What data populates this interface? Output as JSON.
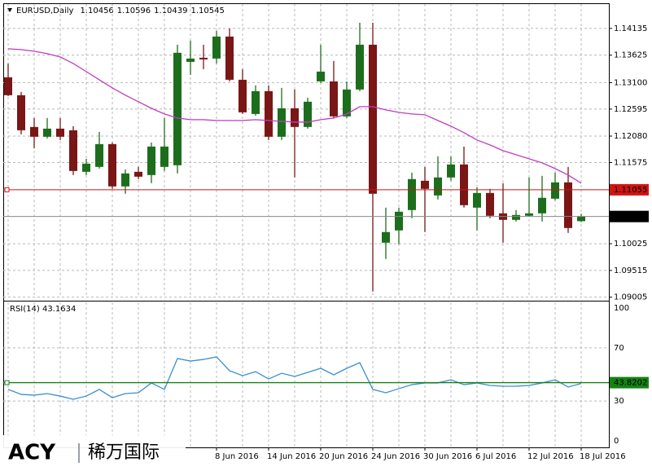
{
  "chart_data": {
    "type": "candlestick",
    "title": "EURUSD,Daily",
    "categories": [
      null,
      null,
      null,
      null,
      null,
      null,
      null,
      null,
      null,
      null,
      null,
      null,
      null,
      null,
      null,
      null,
      "8 Jun 2016",
      null,
      null,
      null,
      "14 Jun 2016",
      null,
      null,
      null,
      "20 Jun 2016",
      null,
      null,
      null,
      "24 Jun 2016",
      null,
      null,
      null,
      "30 Jun 2016",
      null,
      null,
      null,
      "6 Jul 2016",
      null,
      null,
      null,
      "12 Jul 2016",
      null,
      null,
      null,
      "18 Jul 2016"
    ],
    "open": [
      1.13202,
      1.1286,
      1.12254,
      1.12067,
      1.12222,
      1.12191,
      1.11398,
      1.11492,
      1.11927,
      1.11119,
      1.11398,
      1.11336,
      1.11492,
      1.11523,
      1.13497,
      1.13575,
      1.1356,
      1.1398,
      1.13155,
      1.12502,
      1.12938,
      1.12067,
      1.12611,
      1.12254,
      1.13124,
      1.13124,
      1.12456,
      1.12969,
      1.13824,
      1.10045,
      1.10279,
      1.10668,
      1.11227,
      1.10947,
      1.1129,
      1.11538,
      1.10714,
      1.10994,
      1.10605,
      1.10481,
      1.10559,
      1.10605,
      1.10885,
      1.11196,
      1.10456
    ],
    "high": [
      1.13466,
      1.12922,
      1.12425,
      1.12425,
      1.12425,
      1.12269,
      1.11647,
      1.1216,
      1.11958,
      1.11445,
      1.11492,
      1.11958,
      1.12425,
      1.13824,
      1.13902,
      1.13824,
      1.14088,
      1.14135,
      1.13358,
      1.13047,
      1.13047,
      1.13,
      1.12969,
      1.12813,
      1.13824,
      1.13513,
      1.13124,
      1.14244,
      1.14244,
      1.10714,
      1.10714,
      1.11383,
      1.11492,
      1.11694,
      1.11694,
      1.1188,
      1.11103,
      1.11072,
      1.11181,
      1.10668,
      1.1129,
      1.11321,
      1.11383,
      1.11492,
      1.10596
    ],
    "low": [
      1.12844,
      1.12114,
      1.11849,
      1.12036,
      1.12005,
      1.11336,
      1.11336,
      1.1146,
      1.11072,
      1.10979,
      1.11259,
      1.11181,
      1.11414,
      1.11367,
      1.13249,
      1.13358,
      1.13466,
      1.13124,
      1.12502,
      1.12471,
      1.12005,
      1.12005,
      1.1129,
      1.12222,
      1.13093,
      1.12425,
      1.12425,
      1.12938,
      1.09112,
      1.09734,
      1.10014,
      1.10512,
      1.10248,
      1.1087,
      1.11227,
      1.10714,
      1.10279,
      1.10512,
      1.10045,
      1.1045,
      1.10543,
      1.1045,
      1.10854,
      1.10232,
      1.10439
    ],
    "close": [
      1.1286,
      1.12191,
      1.12067,
      1.12222,
      1.12067,
      1.11414,
      1.11554,
      1.11927,
      1.11119,
      1.11367,
      1.11305,
      1.1188,
      1.1188,
      1.1367,
      1.1356,
      1.13544,
      1.1398,
      1.13155,
      1.12533,
      1.12938,
      1.12067,
      1.12611,
      1.12254,
      1.12736,
      1.13311,
      1.12456,
      1.12969,
      1.13824,
      1.10979,
      1.10248,
      1.10636,
      1.11259,
      1.11072,
      1.1129,
      1.11538,
      1.10761,
      1.10994,
      1.10559,
      1.10481,
      1.10574,
      1.10605,
      1.10901,
      1.11196,
      1.10325,
      1.10545
    ],
    "up_color": "#1c6e1c",
    "down_color": "#7a1616",
    "ylim": [
      1.09,
      1.146
    ],
    "yticks": [
      1.14135,
      1.13625,
      {
        "value": 1.131,
        "label": "1.13100"
      },
      1.12595,
      {
        "value": 1.1208,
        "label": "1.12080"
      },
      1.11575,
      1.10025,
      1.09515,
      1.09005
    ],
    "grid": true,
    "moving_average": {
      "color": "#c03cc0",
      "values": [
        1.13746,
        1.13731,
        1.137,
        1.13653,
        1.13591,
        1.13466,
        1.13311,
        1.13155,
        1.13,
        1.1286,
        1.12736,
        1.12611,
        1.12502,
        1.12425,
        1.12393,
        1.12393,
        1.12378,
        1.12378,
        1.12378,
        1.12393,
        1.12378,
        1.12362,
        1.12347,
        1.12347,
        1.12393,
        1.12425,
        1.12502,
        1.12642,
        1.12642,
        1.1258,
        1.12533,
        1.12502,
        1.12487,
        1.12378,
        1.12269,
        1.12145,
        1.12005,
        1.11911,
        1.11802,
        1.11725,
        1.11647,
        1.11569,
        1.1146,
        1.11336,
        1.11181
      ]
    },
    "levels": [
      {
        "value": 1.11055,
        "color": "#d01414"
      }
    ],
    "indicator": {
      "type": "line",
      "title": "RSI(14) 43.1634",
      "values": [
        38.7,
        35.0,
        34.4,
        35.6,
        33.7,
        31.3,
        33.7,
        38.7,
        32.5,
        35.6,
        36.2,
        43.6,
        38.7,
        62.0,
        60.1,
        61.3,
        63.2,
        52.8,
        49.1,
        52.1,
        46.6,
        50.9,
        48.5,
        51.5,
        54.6,
        49.7,
        54.6,
        58.9,
        38.7,
        36.2,
        39.3,
        42.3,
        43.6,
        43.6,
        46.0,
        42.3,
        43.6,
        41.7,
        41.1,
        41.1,
        41.7,
        43.6,
        46.0,
        40.5,
        43.1634
      ],
      "color": "#3a8fd0",
      "ylim": [
        0,
        100
      ],
      "yticks": [
        100,
        70,
        30,
        0
      ],
      "level": 43.8202,
      "level_color": "#148214"
    }
  },
  "watermark": {
    "brand": "ACY",
    "name": "稀万国际"
  }
}
